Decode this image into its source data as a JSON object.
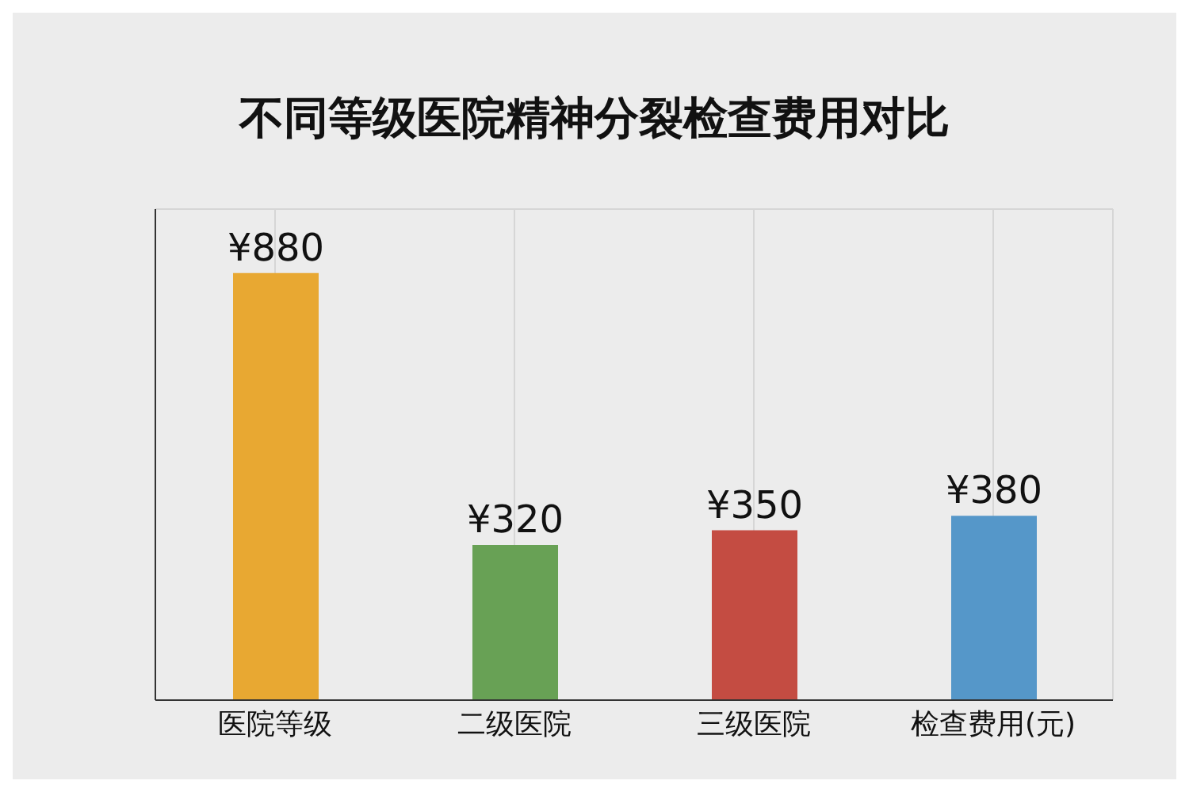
{
  "chart_data": {
    "type": "bar",
    "title": "不同等级医院精神分裂检查费用对比",
    "categories": [
      "医院等级",
      "二级医院",
      "三级医院",
      "检查费用(元)"
    ],
    "values": [
      880,
      320,
      350,
      380
    ],
    "colors": [
      "#e8a832",
      "#68a155",
      "#c44c42",
      "#5597c9"
    ],
    "value_labels": [
      "¥880",
      "¥320",
      "¥350",
      "¥380"
    ],
    "grid": true
  }
}
